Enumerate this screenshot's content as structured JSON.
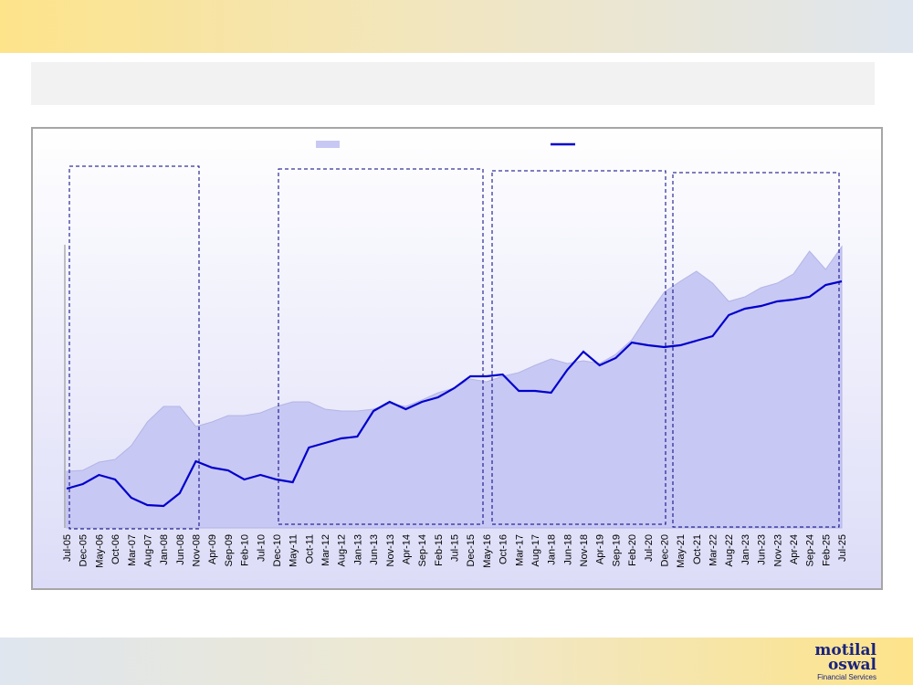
{
  "chart_data": {
    "type": "area-line",
    "categories": [
      "Jul-05",
      "Dec-05",
      "May-06",
      "Oct-06",
      "Mar-07",
      "Aug-07",
      "Jan-08",
      "Jun-08",
      "Nov-08",
      "Apr-09",
      "Sep-09",
      "Feb-10",
      "Jul-10",
      "Dec-10",
      "May-11",
      "Oct-11",
      "Mar-12",
      "Aug-12",
      "Jan-13",
      "Jun-13",
      "Nov-13",
      "Apr-14",
      "Sep-14",
      "Feb-15",
      "Jul-15",
      "Dec-15",
      "May-16",
      "Oct-16",
      "Mar-17",
      "Aug-17",
      "Jan-18",
      "Jun-18",
      "Nov-18",
      "Apr-19",
      "Sep-19",
      "Feb-20",
      "Jul-20",
      "Dec-20",
      "May-21",
      "Oct-21",
      "Mar-22",
      "Aug-22",
      "Jan-23",
      "Jun-23",
      "Nov-23",
      "Apr-24",
      "Sep-24",
      "Feb-25",
      "Jul-25"
    ],
    "series": [
      {
        "kind": "area",
        "color": "#c8c8f4",
        "values": [
          62,
          63,
          72,
          75,
          90,
          116,
          133,
          133,
          111,
          116,
          123,
          123,
          126,
          133,
          138,
          138,
          130,
          128,
          128,
          130,
          136,
          133,
          140,
          148,
          153,
          163,
          160,
          166,
          170,
          178,
          185,
          180,
          183,
          180,
          190,
          206,
          233,
          258,
          270,
          281,
          268,
          248,
          253,
          263,
          268,
          278,
          303,
          283,
          308
        ]
      },
      {
        "kind": "line",
        "color": "#0000cc",
        "values": [
          43,
          48,
          58,
          53,
          33,
          25,
          24,
          38,
          73,
          66,
          63,
          53,
          58,
          53,
          50,
          88,
          93,
          98,
          100,
          128,
          138,
          130,
          138,
          143,
          153,
          166,
          166,
          168,
          150,
          150,
          148,
          173,
          193,
          178,
          186,
          203,
          200,
          198,
          200,
          205,
          210,
          233,
          240,
          243,
          248,
          250,
          253,
          266,
          270
        ]
      }
    ],
    "ylim": [
      0,
      320
    ]
  },
  "logo": {
    "line1": "motilal",
    "line2": "oswal",
    "tagline": "Financial Services"
  }
}
